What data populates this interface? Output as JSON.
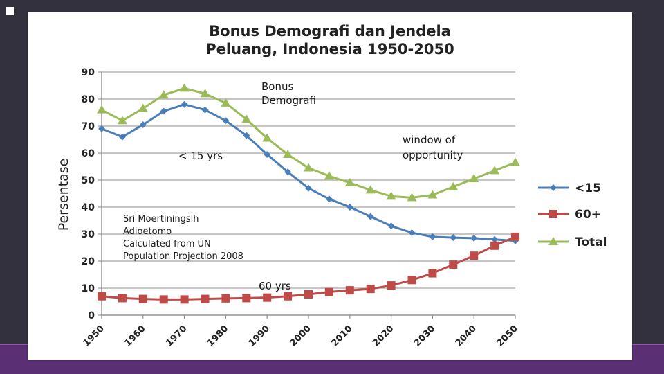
{
  "chart_data": {
    "type": "line",
    "title_lines": [
      "Bonus Demografi dan Jendela",
      "Peluang, Indonesia 1950-2050"
    ],
    "xlabel": "",
    "ylabel": "Persentase",
    "ylim": [
      0,
      90
    ],
    "yticks": [
      0,
      10,
      20,
      30,
      40,
      50,
      60,
      70,
      80,
      90
    ],
    "xticks": [
      "1950",
      "1960",
      "1970",
      "1980",
      "1990",
      "2000",
      "2010",
      "2020",
      "2030",
      "2040",
      "2050"
    ],
    "grid": true,
    "legend_position": "right",
    "x": [
      1950,
      1955,
      1960,
      1965,
      1970,
      1975,
      1980,
      1985,
      1990,
      1995,
      2000,
      2005,
      2010,
      2015,
      2020,
      2025,
      2030,
      2035,
      2040,
      2045,
      2050
    ],
    "series": [
      {
        "name": "<15",
        "color": "#4a7ebb",
        "marker": "diamond",
        "values": [
          69,
          66,
          70.5,
          75.5,
          78,
          76,
          72,
          66.5,
          59.5,
          53,
          47,
          43,
          40,
          36.5,
          33,
          30.5,
          29,
          28.7,
          28.5,
          28,
          27.5
        ]
      },
      {
        "name": "60+",
        "color": "#be4b48",
        "marker": "square",
        "values": [
          7,
          6.3,
          6,
          5.8,
          5.8,
          6,
          6.2,
          6.3,
          6.5,
          7,
          7.7,
          8.6,
          9.2,
          9.7,
          11,
          13,
          15.5,
          18.7,
          22,
          25.7,
          29
        ]
      },
      {
        "name": "Total",
        "color": "#9bbb59",
        "marker": "triangle",
        "values": [
          76,
          72,
          76.5,
          81.5,
          84,
          82,
          78.5,
          72.5,
          65.5,
          59.5,
          54.5,
          51.5,
          49,
          46.3,
          44,
          43.5,
          44.5,
          47.5,
          50.5,
          53.5,
          56.5
        ]
      }
    ],
    "annotations": {
      "bonus": [
        "Bonus",
        "Demografi"
      ],
      "window": [
        "window of",
        "opportunity"
      ],
      "under15": "< 15 yrs",
      "sixty": "60 yrs",
      "source": [
        "Sri Moertiningsih",
        "Adioetomo",
        "Calculated from UN",
        "Population Projection 2008"
      ]
    }
  }
}
